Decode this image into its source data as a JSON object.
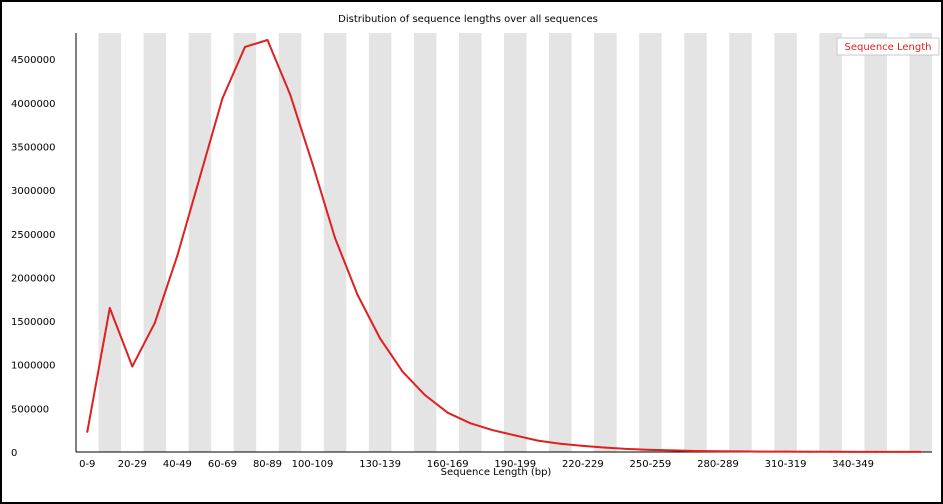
{
  "chart_data": {
    "type": "line",
    "title": "Distribution of sequence lengths over all sequences",
    "xlabel": "Sequence Length (bp)",
    "ylabel": "",
    "ylim": [
      0,
      4800000
    ],
    "y_ticks": [
      0,
      500000,
      1000000,
      1500000,
      2000000,
      2500000,
      3000000,
      3500000,
      4000000,
      4500000
    ],
    "x_tick_labels": [
      "0-9",
      "20-29",
      "40-49",
      "60-69",
      "80-89",
      "100-109",
      "130-139",
      "160-169",
      "190-199",
      "220-229",
      "250-259",
      "280-289",
      "310-319",
      "340-349"
    ],
    "grid": "alternating vertical bands",
    "legend_position": "top-right",
    "colors": {
      "line": "#e02020",
      "band": "#e4e4e4",
      "axis": "#000000"
    },
    "series": [
      {
        "name": "Sequence Length",
        "values": [
          230000,
          1650000,
          980000,
          1480000,
          2250000,
          3150000,
          4050000,
          4640000,
          4720000,
          4100000,
          3300000,
          2450000,
          1800000,
          1300000,
          920000,
          650000,
          450000,
          330000,
          250000,
          190000,
          130000,
          95000,
          70000,
          50000,
          35000,
          25000,
          18000,
          12000,
          9000,
          7000,
          5000,
          4000,
          3000,
          2500,
          2000,
          1600,
          1300,
          1000
        ]
      }
    ]
  }
}
